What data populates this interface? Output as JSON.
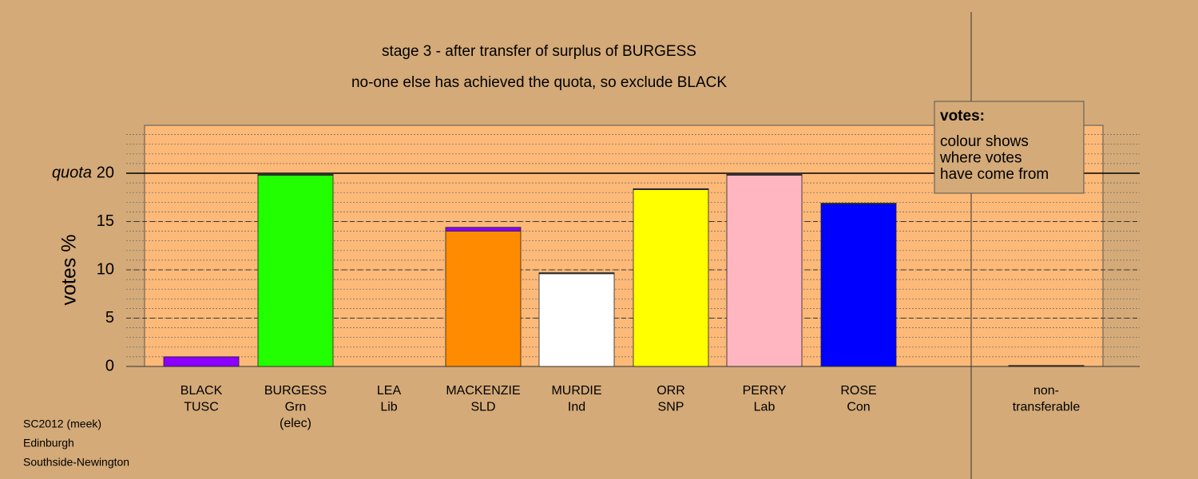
{
  "chart_data": {
    "type": "bar",
    "title": "stage 3 - after transfer of surplus of BURGESS",
    "subtitle": "no-one else has achieved the quota, so exclude BLACK",
    "y_label": "votes %",
    "quota_label": "quota",
    "quota": 20,
    "categories": [
      [
        "BLACK",
        "TUSC"
      ],
      [
        "BURGESS",
        "Grn",
        "(elec)"
      ],
      [
        "LEA",
        "Lib"
      ],
      [
        "MACKENZIE",
        "SLD"
      ],
      [
        "MURDIE",
        "Ind"
      ],
      [
        "ORR",
        "SNP"
      ],
      [
        "PERRY",
        "Lab"
      ],
      [
        "ROSE",
        "Con"
      ],
      [
        "non-",
        "transferable"
      ]
    ],
    "series": [
      {
        "colors": [
          "#8b00ff",
          "#22ff00",
          "#ff8c00",
          "#ff8c00",
          "#ffffff",
          "#ffff00",
          "#ffb6c1",
          "#0000ff",
          "#333333"
        ],
        "values": [
          1.0,
          19.8,
          0,
          14.0,
          9.6,
          18.3,
          19.8,
          16.8,
          0.1
        ]
      },
      {
        "color": "#333333",
        "values": [
          0,
          0.2,
          0,
          0,
          0.1,
          0.1,
          0.2,
          0.1,
          0
        ]
      },
      {
        "color": "#8b00ff",
        "values": [
          0,
          0,
          0,
          0.4,
          0,
          0,
          0,
          0,
          0
        ]
      }
    ],
    "ylim": [
      0,
      25
    ],
    "yticks": [
      0,
      5,
      10,
      15,
      20
    ],
    "minor_grid_step": 1,
    "legend": {
      "title": "votes:",
      "lines": [
        "colour shows",
        "where votes",
        "have come from"
      ]
    },
    "footnotes": [
      "SC2012 (meek)",
      "Edinburgh",
      "Southside-Newington"
    ]
  }
}
